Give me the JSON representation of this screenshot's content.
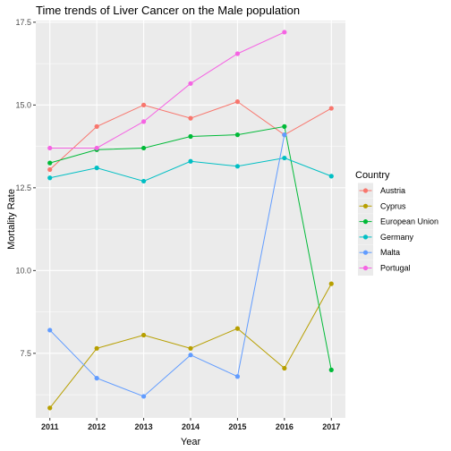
{
  "chart_data": {
    "type": "line",
    "title": "Time trends of Liver Cancer on the Male population",
    "xlabel": "Year",
    "ylabel": "Mortality Rate",
    "x": [
      2011,
      2012,
      2013,
      2014,
      2015,
      2016,
      2017
    ],
    "xlim": [
      2010.7,
      2017.3
    ],
    "ylim": [
      5.55,
      17.55
    ],
    "yticks": [
      7.5,
      10.0,
      12.5,
      15.0,
      17.5
    ],
    "ytick_labels": [
      "7.5",
      "10.0",
      "12.5",
      "15.0",
      "17.5"
    ],
    "grid": true,
    "legend": {
      "title": "Country",
      "position": "right"
    },
    "series": [
      {
        "name": "Austria",
        "color": "#F8766D",
        "x": [
          2011,
          2012,
          2013,
          2014,
          2015,
          2016,
          2017
        ],
        "values": [
          13.05,
          14.35,
          15.0,
          14.6,
          15.1,
          14.1,
          14.9
        ]
      },
      {
        "name": "Cyprus",
        "color": "#B79F00",
        "x": [
          2011,
          2012,
          2013,
          2014,
          2015,
          2016,
          2017
        ],
        "values": [
          5.85,
          7.65,
          8.05,
          7.65,
          8.25,
          7.05,
          9.6
        ]
      },
      {
        "name": "European Union",
        "color": "#00BA38",
        "x": [
          2011,
          2012,
          2013,
          2014,
          2015,
          2016,
          2017
        ],
        "values": [
          13.25,
          13.65,
          13.7,
          14.05,
          14.1,
          14.35,
          7.0
        ]
      },
      {
        "name": "Germany",
        "color": "#00BFC4",
        "x": [
          2011,
          2012,
          2013,
          2014,
          2015,
          2016,
          2017
        ],
        "values": [
          12.8,
          13.1,
          12.7,
          13.3,
          13.15,
          13.4,
          12.85
        ]
      },
      {
        "name": "Malta",
        "color": "#619CFF",
        "x": [
          2011,
          2012,
          2013,
          2014,
          2015,
          2016,
          2017
        ],
        "values": [
          8.2,
          6.75,
          6.2,
          7.45,
          6.8,
          14.1,
          null
        ]
      },
      {
        "name": "Portugal",
        "color": "#F564E3",
        "x": [
          2011,
          2012,
          2013,
          2014,
          2015,
          2016
        ],
        "values": [
          13.7,
          13.7,
          14.5,
          15.65,
          16.55,
          17.2
        ]
      }
    ]
  }
}
